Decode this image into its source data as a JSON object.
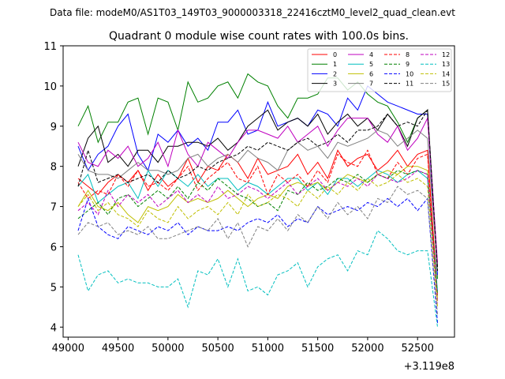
{
  "chart_data": {
    "type": "line",
    "suptitle": "Data file: modeM0/AS1T03_149T03_9000003318_22416cztM0_level2_quad_clean.evt",
    "title": "Quadrant 0 module wise count rates with 100.0s bins.",
    "xlabel": "",
    "ylabel": "",
    "x_offset_label": "+3.119e8",
    "xlim": [
      48950,
      52870
    ],
    "ylim": [
      3.75,
      11
    ],
    "xticks": [
      49000,
      49500,
      50000,
      50500,
      51000,
      51500,
      52000,
      52500
    ],
    "yticks": [
      4,
      5,
      6,
      7,
      8,
      9,
      10,
      11
    ],
    "x": [
      49100,
      49200,
      49300,
      49400,
      49500,
      49600,
      49700,
      49800,
      49900,
      50000,
      50100,
      50200,
      50300,
      50400,
      50500,
      50600,
      50700,
      50800,
      50900,
      51000,
      51100,
      51200,
      51300,
      51400,
      51500,
      51600,
      51700,
      51800,
      51900,
      52000,
      52100,
      52200,
      52300,
      52400,
      52500,
      52600,
      52700
    ],
    "series": [
      {
        "name": "0",
        "color": "#ff0000",
        "dash": "solid",
        "values": [
          7.7,
          7.5,
          7.3,
          7.6,
          7.8,
          7.6,
          7.9,
          7.4,
          7.8,
          7.5,
          7.7,
          8.2,
          7.6,
          8.0,
          7.9,
          8.3,
          8.1,
          7.7,
          8.2,
          7.8,
          7.9,
          8.0,
          8.3,
          7.8,
          8.1,
          7.7,
          8.4,
          8.0,
          8.2,
          8.3,
          7.9,
          8.1,
          8.4,
          8.0,
          8.3,
          8.4,
          4.8
        ]
      },
      {
        "name": "1",
        "color": "#008000",
        "dash": "solid",
        "values": [
          9.0,
          9.5,
          8.6,
          9.1,
          9.1,
          9.6,
          9.7,
          8.8,
          9.7,
          9.6,
          8.9,
          10.1,
          9.6,
          9.7,
          10.0,
          10.1,
          9.7,
          10.3,
          10.1,
          10.0,
          9.5,
          9.2,
          9.7,
          9.7,
          9.8,
          10.2,
          10.2,
          9.9,
          10.1,
          9.8,
          9.6,
          9.5,
          9.1,
          8.6,
          9.2,
          9.4,
          5.2
        ]
      },
      {
        "name": "2",
        "color": "#0000ff",
        "dash": "solid",
        "values": [
          8.5,
          7.9,
          8.3,
          8.5,
          9.0,
          9.3,
          8.3,
          7.9,
          8.8,
          8.6,
          8.9,
          8.5,
          8.7,
          8.4,
          9.1,
          9.1,
          9.4,
          8.8,
          8.9,
          9.6,
          9.0,
          9.1,
          9.2,
          9.0,
          9.4,
          9.3,
          9.0,
          9.7,
          9.4,
          10.0,
          9.8,
          9.6,
          9.5,
          9.4,
          9.3,
          9.3,
          5.3
        ]
      },
      {
        "name": "3",
        "color": "#000000",
        "dash": "solid",
        "values": [
          8.0,
          8.7,
          9.0,
          8.1,
          8.3,
          8.0,
          8.4,
          8.4,
          8.1,
          8.5,
          8.5,
          8.6,
          8.6,
          8.5,
          8.7,
          8.4,
          8.6,
          9.0,
          9.2,
          9.4,
          8.9,
          9.1,
          9.2,
          9.0,
          9.3,
          8.8,
          9.1,
          9.3,
          9.0,
          9.2,
          8.9,
          9.3,
          9.0,
          8.5,
          9.2,
          9.4,
          5.5
        ]
      },
      {
        "name": "4",
        "color": "#bf00bf",
        "dash": "solid",
        "values": [
          8.6,
          8.1,
          8.0,
          8.4,
          8.2,
          8.5,
          8.0,
          8.2,
          8.6,
          8.0,
          8.9,
          8.3,
          8.0,
          8.6,
          8.4,
          8.2,
          8.6,
          8.9,
          8.9,
          8.8,
          8.7,
          9.0,
          8.6,
          8.8,
          9.0,
          8.5,
          8.9,
          9.2,
          9.2,
          9.2,
          8.8,
          8.6,
          9.0,
          8.4,
          8.7,
          9.2,
          5.6
        ]
      },
      {
        "name": "5",
        "color": "#00bfbf",
        "dash": "solid",
        "values": [
          7.5,
          7.8,
          7.1,
          7.3,
          7.5,
          7.6,
          7.2,
          7.9,
          7.5,
          7.9,
          7.7,
          7.5,
          7.8,
          7.5,
          7.7,
          7.7,
          7.4,
          7.6,
          7.5,
          7.3,
          7.5,
          7.7,
          7.7,
          7.4,
          7.6,
          7.3,
          7.7,
          7.7,
          7.5,
          7.7,
          7.9,
          7.8,
          7.6,
          7.8,
          7.9,
          7.7,
          4.9
        ]
      },
      {
        "name": "6",
        "color": "#bfbf00",
        "dash": "solid",
        "values": [
          7.0,
          7.4,
          7.0,
          6.9,
          7.1,
          6.8,
          6.6,
          7.0,
          6.9,
          7.0,
          7.3,
          7.1,
          7.2,
          7.1,
          7.2,
          7.4,
          7.2,
          7.0,
          7.2,
          7.3,
          7.2,
          7.5,
          7.6,
          7.5,
          7.6,
          7.4,
          7.6,
          7.8,
          7.7,
          7.6,
          7.8,
          7.9,
          7.8,
          8.0,
          8.0,
          7.9,
          4.7
        ]
      },
      {
        "name": "7",
        "color": "#808080",
        "dash": "solid",
        "values": [
          8.3,
          7.9,
          7.8,
          7.8,
          7.7,
          7.9,
          8.1,
          7.9,
          7.9,
          7.8,
          7.9,
          8.2,
          8.3,
          8.0,
          8.2,
          8.3,
          8.1,
          8.4,
          8.2,
          8.1,
          7.9,
          8.4,
          8.6,
          8.4,
          8.5,
          8.2,
          8.6,
          8.5,
          8.6,
          8.7,
          8.9,
          8.8,
          8.5,
          8.7,
          8.9,
          8.7,
          5.4
        ]
      },
      {
        "name": "8",
        "color": "#ff0000",
        "dash": "dashed",
        "values": [
          7.6,
          7.2,
          7.4,
          7.3,
          7.8,
          7.5,
          7.9,
          7.5,
          7.6,
          7.4,
          7.7,
          8.0,
          7.4,
          7.7,
          7.9,
          8.1,
          7.7,
          7.6,
          8.0,
          7.3,
          7.8,
          7.6,
          7.8,
          7.5,
          7.9,
          7.6,
          8.3,
          8.1,
          8.0,
          8.4,
          7.8,
          7.7,
          8.1,
          7.8,
          8.2,
          8.3,
          4.6
        ]
      },
      {
        "name": "9",
        "color": "#008000",
        "dash": "dashed",
        "values": [
          6.7,
          6.9,
          7.1,
          6.8,
          7.2,
          7.3,
          7.0,
          7.2,
          7.4,
          7.2,
          7.5,
          7.2,
          7.6,
          7.4,
          7.7,
          7.5,
          7.3,
          7.2,
          7.0,
          7.1,
          6.9,
          7.4,
          7.3,
          7.6,
          7.4,
          7.5,
          7.7,
          7.6,
          7.8,
          7.6,
          7.8,
          7.7,
          7.9,
          7.8,
          7.9,
          7.8,
          4.8
        ]
      },
      {
        "name": "10",
        "color": "#0000ff",
        "dash": "dashed",
        "values": [
          6.4,
          7.2,
          6.5,
          6.3,
          6.2,
          6.5,
          6.4,
          6.3,
          6.5,
          6.4,
          6.6,
          6.3,
          6.5,
          6.4,
          6.4,
          6.5,
          6.4,
          6.6,
          6.7,
          6.6,
          6.8,
          6.5,
          6.7,
          6.6,
          7.0,
          6.8,
          6.9,
          7.0,
          6.9,
          7.1,
          7.0,
          7.2,
          7.0,
          7.2,
          6.9,
          7.2,
          4.1
        ]
      },
      {
        "name": "11",
        "color": "#000000",
        "dash": "dashed",
        "values": [
          7.5,
          8.4,
          7.6,
          7.7,
          7.8,
          7.6,
          7.7,
          7.8,
          7.6,
          7.9,
          7.7,
          7.8,
          8.0,
          7.9,
          8.1,
          8.2,
          8.3,
          8.5,
          8.4,
          8.6,
          8.5,
          8.4,
          8.6,
          8.7,
          8.5,
          8.6,
          8.8,
          8.6,
          8.9,
          8.9,
          9.0,
          9.3,
          9.0,
          9.1,
          9.0,
          9.4,
          5.4
        ]
      },
      {
        "name": "12",
        "color": "#bf00bf",
        "dash": "dashed",
        "values": [
          6.9,
          7.1,
          6.8,
          7.4,
          7.0,
          7.3,
          7.1,
          7.3,
          7.0,
          7.2,
          7.4,
          7.1,
          7.3,
          7.1,
          7.5,
          7.2,
          7.3,
          7.5,
          7.4,
          7.2,
          7.4,
          7.6,
          7.3,
          7.5,
          7.7,
          7.4,
          7.6,
          7.5,
          7.7,
          7.5,
          7.8,
          7.7,
          7.6,
          7.7,
          7.9,
          7.8,
          4.6
        ]
      },
      {
        "name": "13",
        "color": "#00bfbf",
        "dash": "dashed",
        "values": [
          5.8,
          4.9,
          5.3,
          5.4,
          5.1,
          5.2,
          5.1,
          5.1,
          5.0,
          5.0,
          5.2,
          4.5,
          5.4,
          5.3,
          5.7,
          5.0,
          5.7,
          4.9,
          5.0,
          4.8,
          5.3,
          5.4,
          5.6,
          5.0,
          5.5,
          5.7,
          5.8,
          5.4,
          5.9,
          5.8,
          6.4,
          6.2,
          5.9,
          5.8,
          5.9,
          5.9,
          4.0
        ]
      },
      {
        "name": "14",
        "color": "#bfbf00",
        "dash": "dashed",
        "values": [
          7.0,
          7.3,
          6.9,
          7.1,
          6.8,
          6.7,
          6.5,
          6.9,
          6.7,
          6.6,
          7.0,
          6.7,
          6.9,
          7.0,
          6.8,
          7.1,
          6.8,
          7.3,
          7.0,
          7.1,
          7.3,
          7.2,
          7.0,
          7.4,
          7.2,
          7.5,
          7.3,
          7.6,
          7.4,
          7.7,
          7.5,
          7.6,
          7.8,
          7.6,
          7.7,
          7.5,
          4.5
        ]
      },
      {
        "name": "15",
        "color": "#808080",
        "dash": "dashed",
        "values": [
          6.3,
          6.6,
          6.5,
          6.6,
          6.3,
          6.4,
          6.3,
          6.5,
          6.2,
          6.2,
          6.3,
          6.4,
          6.5,
          6.4,
          6.7,
          6.2,
          6.6,
          6.0,
          6.5,
          6.4,
          6.7,
          6.4,
          6.8,
          6.6,
          7.0,
          6.7,
          7.1,
          6.8,
          7.0,
          6.7,
          7.2,
          7.1,
          7.5,
          7.3,
          7.4,
          7.2,
          4.3
        ]
      }
    ],
    "legend": {
      "location": "top-right",
      "ncol": 4
    }
  }
}
